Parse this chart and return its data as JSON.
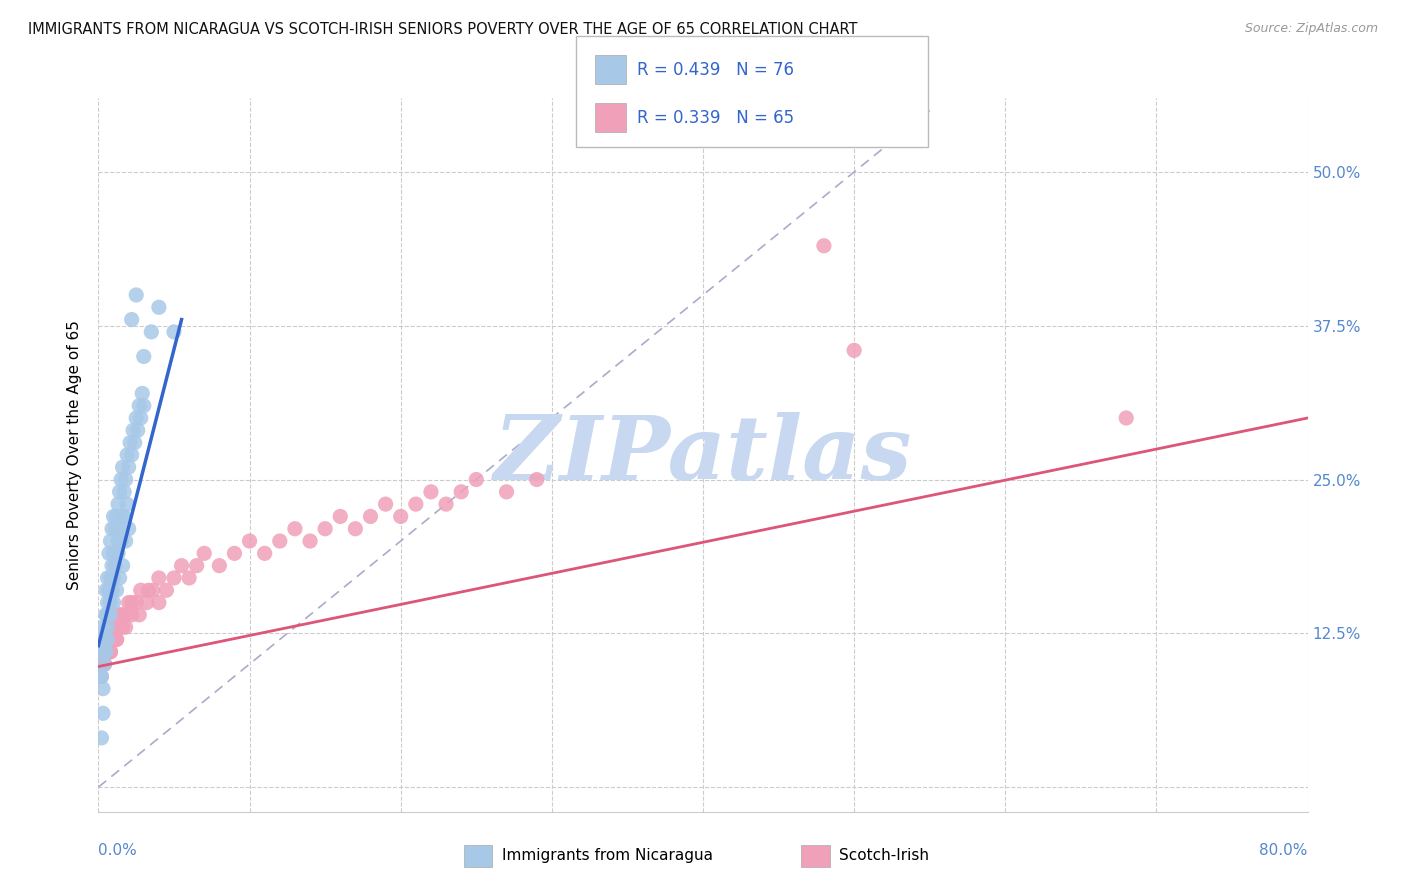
{
  "title": "IMMIGRANTS FROM NICARAGUA VS SCOTCH-IRISH SENIORS POVERTY OVER THE AGE OF 65 CORRELATION CHART",
  "source": "Source: ZipAtlas.com",
  "ylabel": "Seniors Poverty Over the Age of 65",
  "ytick_labels": [
    "",
    "12.5%",
    "25.0%",
    "37.5%",
    "50.0%"
  ],
  "ytick_values": [
    0,
    0.125,
    0.25,
    0.375,
    0.5
  ],
  "xlim": [
    0.0,
    0.8
  ],
  "ylim": [
    -0.02,
    0.56
  ],
  "legend_text1": "R = 0.439   N = 76",
  "legend_text2": "R = 0.339   N = 65",
  "color_blue": "#a8c8e8",
  "color_pink": "#f0a0b8",
  "color_blue_line": "#3366cc",
  "color_pink_line": "#dd5577",
  "color_diag": "#aaaacc",
  "watermark": "ZIPatlas",
  "watermark_color": "#c8d8f0",
  "blue_x": [
    0.001,
    0.002,
    0.003,
    0.003,
    0.004,
    0.004,
    0.005,
    0.005,
    0.005,
    0.006,
    0.006,
    0.006,
    0.007,
    0.007,
    0.007,
    0.008,
    0.008,
    0.008,
    0.009,
    0.009,
    0.009,
    0.01,
    0.01,
    0.01,
    0.011,
    0.011,
    0.012,
    0.012,
    0.013,
    0.013,
    0.014,
    0.014,
    0.015,
    0.015,
    0.016,
    0.016,
    0.017,
    0.018,
    0.019,
    0.02,
    0.021,
    0.022,
    0.023,
    0.024,
    0.025,
    0.026,
    0.027,
    0.028,
    0.029,
    0.03,
    0.001,
    0.002,
    0.003,
    0.004,
    0.005,
    0.006,
    0.007,
    0.008,
    0.009,
    0.01,
    0.011,
    0.012,
    0.013,
    0.014,
    0.015,
    0.016,
    0.017,
    0.018,
    0.019,
    0.02,
    0.022,
    0.025,
    0.03,
    0.035,
    0.04,
    0.05
  ],
  "blue_y": [
    0.09,
    0.04,
    0.06,
    0.08,
    0.1,
    0.12,
    0.11,
    0.14,
    0.16,
    0.13,
    0.15,
    0.17,
    0.14,
    0.16,
    0.19,
    0.15,
    0.17,
    0.2,
    0.16,
    0.18,
    0.21,
    0.17,
    0.19,
    0.22,
    0.18,
    0.21,
    0.19,
    0.22,
    0.2,
    0.23,
    0.21,
    0.24,
    0.2,
    0.25,
    0.22,
    0.26,
    0.24,
    0.25,
    0.27,
    0.26,
    0.28,
    0.27,
    0.29,
    0.28,
    0.3,
    0.29,
    0.31,
    0.3,
    0.32,
    0.31,
    0.11,
    0.09,
    0.13,
    0.11,
    0.14,
    0.12,
    0.16,
    0.14,
    0.17,
    0.15,
    0.18,
    0.16,
    0.19,
    0.17,
    0.2,
    0.18,
    0.22,
    0.2,
    0.23,
    0.21,
    0.38,
    0.4,
    0.35,
    0.37,
    0.39,
    0.37
  ],
  "pink_x": [
    0.001,
    0.002,
    0.003,
    0.004,
    0.005,
    0.006,
    0.007,
    0.008,
    0.009,
    0.01,
    0.011,
    0.012,
    0.013,
    0.014,
    0.015,
    0.016,
    0.018,
    0.02,
    0.022,
    0.025,
    0.028,
    0.032,
    0.036,
    0.04,
    0.045,
    0.05,
    0.055,
    0.06,
    0.065,
    0.07,
    0.08,
    0.09,
    0.1,
    0.11,
    0.12,
    0.13,
    0.14,
    0.15,
    0.16,
    0.17,
    0.18,
    0.19,
    0.2,
    0.21,
    0.22,
    0.23,
    0.24,
    0.25,
    0.27,
    0.29,
    0.002,
    0.004,
    0.006,
    0.008,
    0.01,
    0.012,
    0.015,
    0.018,
    0.022,
    0.027,
    0.033,
    0.04,
    0.5,
    0.48,
    0.68
  ],
  "pink_y": [
    0.1,
    0.09,
    0.11,
    0.1,
    0.12,
    0.11,
    0.12,
    0.11,
    0.13,
    0.12,
    0.13,
    0.12,
    0.14,
    0.13,
    0.14,
    0.13,
    0.14,
    0.15,
    0.14,
    0.15,
    0.16,
    0.15,
    0.16,
    0.17,
    0.16,
    0.17,
    0.18,
    0.17,
    0.18,
    0.19,
    0.18,
    0.19,
    0.2,
    0.19,
    0.2,
    0.21,
    0.2,
    0.21,
    0.22,
    0.21,
    0.22,
    0.23,
    0.22,
    0.23,
    0.24,
    0.23,
    0.24,
    0.25,
    0.24,
    0.25,
    0.11,
    0.1,
    0.12,
    0.11,
    0.13,
    0.12,
    0.14,
    0.13,
    0.15,
    0.14,
    0.16,
    0.15,
    0.355,
    0.44,
    0.3
  ],
  "blue_line_x": [
    0.0,
    0.055
  ],
  "blue_line_y": [
    0.115,
    0.38
  ],
  "pink_line_x": [
    0.0,
    0.8
  ],
  "pink_line_y": [
    0.098,
    0.3
  ]
}
